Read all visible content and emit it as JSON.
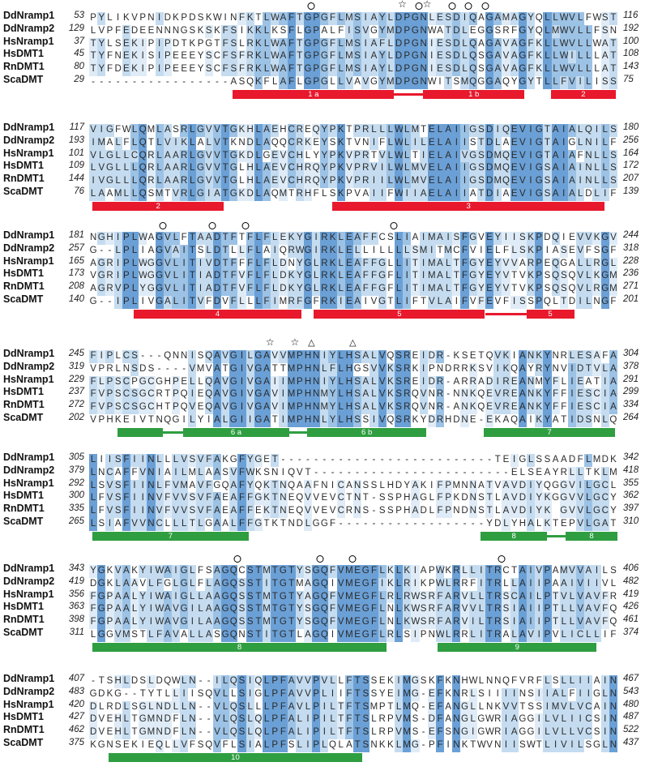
{
  "figure": {
    "type": "multiple-sequence-alignment",
    "description": "Protein sequence alignment of Nramp/DMT family transporters with conservation shading, secondary-structure bars and residue markers"
  },
  "colors": {
    "shade_dark": "#6ba0d6",
    "shade_medium": "#9cc2e5",
    "shade_light": "#c5dcf0",
    "shade_pale": "#dfecf7",
    "helix_red": "#e8192c",
    "helix_green": "#2f9e41",
    "bar_label": "#ffffff",
    "text": "#2a2a2a"
  },
  "row_names": [
    "DdNramp1",
    "DdNramp2",
    "HsNramp1",
    "HsDMT1",
    "RnDMT1",
    "ScaDMT"
  ],
  "marker_symbols": {
    "circle": "open-circle-icon",
    "star": "open-star-icon",
    "triangle": "open-triangle-icon"
  },
  "blocks": [
    {
      "starts": [
        53,
        129,
        37,
        45,
        80,
        29
      ],
      "ends": [
        116,
        192,
        100,
        108,
        143,
        75
      ],
      "seqs": [
        "PYLIKVPNIDKPDSKWINFKTLWAFTGPGFLMSIAYLDPGNLESDIQAGAMAGYQLLWVLFWST",
        "LVPFEDEENNNGSKSKFSIKKLKSFLGPALFISVGYMDPGNWATDLEGGSRFGYQLMWVLLFSN",
        "TYLSEKIPIPDTKPGTFSLRKLWAFTGPGFLMSIAFLDPGNIESDLQAGAVAGFKLLWVLLWAT",
        "TYFNEKISIPEEEYSCFSFRKLWAFTGPGFLMSIAYLDPGNIESDLQSGAVAGFKLLWILLLAT",
        "TYFDEKIPIPEEEYSCFSFRKLWAFTGPGFLMSIAYLDPGNIESDLQSGAVAGFKLLWVLLLAT",
        "-----------------ASQKFLAFLGPGLLVAVGYMDPGNWITSMQGGAQYGYTLLFVILISS"
      ],
      "markers": [
        [
          26,
          "circle"
        ],
        [
          37,
          "star"
        ],
        [
          39,
          "circle"
        ],
        [
          40,
          "star"
        ],
        [
          43,
          "circle"
        ],
        [
          45,
          "circle"
        ],
        [
          47,
          "circle"
        ]
      ],
      "bars": [
        [
          17,
          36.5,
          "red",
          "1 a",
          false
        ],
        [
          36.5,
          40,
          "red",
          "",
          true
        ],
        [
          40,
          52.3,
          "red",
          "1 b",
          false
        ],
        [
          55.5,
          63.3,
          "red",
          "2",
          false
        ]
      ]
    },
    {
      "starts": [
        117,
        193,
        101,
        109,
        144,
        76
      ],
      "ends": [
        180,
        256,
        164,
        172,
        207,
        139
      ],
      "seqs": [
        "VIGFWLQMLASRLGVVTGKHLAEHCREQYPKTPRLLLWLMTELAIIGSDIQEVIGTAIALQILS",
        "IMALFLQTLVIKLALVTKNDLAQQCRKEYSKTVNIFLWLILELAIISTDLAEVIGTAIGLNILF",
        "VLGLLCQRLAARLGVVTGKDLGEVCHLYYPKVPRTVLWLTIELAIVGSDMQEVIGTAIAFNLLS",
        "LVGLLLQRLAARLGVVTGLHLAEVCHRQYPKVPRVILWLMVELAIIGSDMQEVIGSAIAINLLS",
        "IVGLLLQRLAARLGVVTGLHLAEVCHRQYPKVPRIILWLMVELAIIGSDMQEVIGSAIAINLLS",
        "LAAMLLQSMTVRLGIATGKDLAQMTRHFLSKPVAIIFWIIAELAIIATDIAEVIGSAIALDLIF"
      ],
      "markers": [],
      "bars": [
        [
          0,
          15.9,
          "red",
          "2",
          false
        ],
        [
          29,
          62,
          "red",
          "3",
          false
        ]
      ]
    },
    {
      "starts": [
        181,
        257,
        165,
        173,
        208,
        140
      ],
      "ends": [
        244,
        318,
        228,
        236,
        271,
        201
      ],
      "seqs": [
        "NGHIPLWAGVLFTAADTFTFLFLEKYGIRKLEAFFCSLIAIMAISFGVEYIISKPDQIEVVKGV",
        "G--LPLIAGVAITSLDTLLFLAIQRWGIRKLELLILLLLSMITMCFVIELFLSKPIASEVFSGF",
        "AGRIPLWGGVLITIVDTFFFLFLDNYGLRKLEAFFGLLITIMALTFGYEYVVARPEQGALLRGL",
        "VGRIPLWGGVLITIADTFVFLFLDKYGLRKLEAFFGFLITIMALTFGYEYVTVKPSQSQVLKGM",
        "AGRVPLYGGVLITIADTFVFLFLDKYGLRKLEAFFGFLITIMALTFGYEYVTVKPSQSQVLRGM",
        "G--IPLIVGALITVFDVFLLLFIMRFGFRKIEAIVGTLIFTVLAIFVFEVFISSPQLTDILNGF"
      ],
      "markers": [
        [
          8,
          "circle"
        ],
        [
          14,
          "circle"
        ],
        [
          18,
          "circle"
        ],
        [
          36,
          "circle"
        ]
      ],
      "bars": [
        [
          5,
          25.3,
          "red",
          "4",
          false
        ],
        [
          26.8,
          47.5,
          "red",
          "5",
          false
        ],
        [
          47.5,
          52.5,
          "red",
          "",
          true
        ],
        [
          52.5,
          58.3,
          "red",
          "5",
          false
        ]
      ]
    },
    {
      "starts": [
        245,
        319,
        229,
        237,
        272,
        202
      ],
      "ends": [
        304,
        378,
        291,
        299,
        334,
        264
      ],
      "seqs": [
        "FIPLCS---QNNISQAVGILGAVVMPHNIYLHSALVQSREIDR-KSETQVKIANKYNRLESAFA",
        "VPRLNSDS----VMVATGIVGATTMPHNLFLHGSVVKSRKIPNDRRKSVIKQAYRYNVIDTVLA",
        "FLPSCPGCGHPELLQAVGIVGAIIMPHNIYLHSALVKSREIDR-ARRADIREANMYFLIEATIA",
        "FVPSCSGCRTPQIEQAVGIVGAVIMPHNMYLHSALVKSRQVNR-NNKQEVREANKYFFIESCIA",
        "FVPSCSGCHTPQVEQAVGIVGAVIMPHNMYLHSALVKSRQVNR-ANKQEVREANKYFFIESCIA",
        "VPHKEIVTNQGILYIALGIIGATIMPHNLYLHSSIVQSRKYDRHDNE-EKAQAIKYATIDSNLQ"
      ],
      "markers": [
        [
          21,
          "star"
        ],
        [
          24,
          "star"
        ],
        [
          26,
          "triangle"
        ],
        [
          31,
          "triangle"
        ]
      ],
      "bars": [
        [
          3,
          8.5,
          "green",
          "",
          false
        ],
        [
          8.5,
          11,
          "green",
          "",
          true
        ],
        [
          11,
          23.8,
          "green",
          "6 a",
          false
        ],
        [
          23.8,
          26,
          "green",
          "",
          true
        ],
        [
          26,
          40.4,
          "green",
          "6 b",
          false
        ],
        [
          47.4,
          63.2,
          "green",
          "7",
          false
        ]
      ]
    },
    {
      "starts": [
        305,
        379,
        292,
        300,
        335,
        265
      ],
      "ends": [
        342,
        418,
        355,
        362,
        397,
        310
      ],
      "seqs": [
        "LIISFIINLLLVSVFAKGFYGET--------------------------TEIGLSSAADFLMDK",
        "LNCAFFVNIAILMLAASVFWKSNIQVT------------------------ELSEAYRLLTKLM",
        "LSVSFIINLFVMAVFGQAFYQKTNQAAFNICANSSLHDYAKIFPMNNATVAVDIYQGGVILGCL",
        "LFVSFIINVFVVSVFAEAFFGKTNEQVVEVCTNT-SSPHAGLFPKDNSTLAVDIYKGGVVLGCY",
        "LFVSFIINVFVVSVFAEAFFEKTNEQVVEVCRNS-SSPHADLFPNDNSTLAVDIYK GVVLGCY",
        "LSIAFVVNCLLLTLGAALFFGTKTNDLGGF------------------YDLYHALKTEPVLGAT"
      ],
      "markers": [],
      "bars": [
        [
          0,
          18.9,
          "green",
          "7",
          false
        ],
        [
          47,
          55,
          "green",
          "8",
          false
        ],
        [
          55,
          57.3,
          "green",
          "",
          true
        ],
        [
          57.3,
          63.5,
          "green",
          "8",
          false
        ]
      ]
    },
    {
      "starts": [
        343,
        419,
        356,
        363,
        398,
        311
      ],
      "ends": [
        406,
        482,
        419,
        426,
        461,
        374
      ],
      "seqs": [
        "YGKVAKYIWAIGLFSAGQCSTMTGTYSGQFVMEGFLKLKIAPWKRLLITRCTAIVPAMVVAILS",
        "DGKLAAVLFGLGLFLAGQSSTITGTMAGQIVMEGFIKLRIKPWLRRFITRLLAIIPAAIVIIVL",
        "FGPAALYIWAIGLLAAGQSSTMTGTYAGQFVMEGFLRLRWSRFARVLLTRSCAILPTVLVAVFR",
        "FGPAALYIWAVGILAAGQSSTMTGTYSGQFVMEGFLNLKWSRFARVVLTRSIAIIPTLLVAVFQ",
        "FGPAALYIWAVGILAAGQSSTMTGTYSGQFVMEGFLNLKWSRFARVILTRSIAIIPTLLVAVFQ",
        "LGGVMSTLFAVALLASGQNSTITGTLAGQIVMEGFLRLSIPNWLRRLITRALAVIPVLICLLIF"
      ],
      "markers": [
        [
          17,
          "circle"
        ],
        [
          27,
          "circle"
        ],
        [
          31,
          "circle"
        ],
        [
          49,
          "circle"
        ]
      ],
      "bars": [
        [
          0,
          35.6,
          "green",
          "8",
          false
        ],
        [
          41.8,
          61,
          "green",
          "9",
          false
        ]
      ]
    },
    {
      "starts": [
        407,
        483,
        420,
        427,
        462,
        375
      ],
      "ends": [
        467,
        543,
        480,
        487,
        522,
        437
      ],
      "seqs": [
        "-TSHLDSLDQWLN--ILQSIQLPFAVVPVLLFTSSEKIMGSKFKNHWLNNQFVRFLSLLIIAIN",
        "GDKG--TYTLLIISQVLLSIGLPFAVVPLIIFTSSYEIMG-EFKNRLSIIIINSIIALFIIGLN",
        "DLRDLSGLNDLLN--VLQSLLLPFAVLPILTFTSMPTLMQ-EFANGLLNKVVTSSIMVLVCAIN",
        "DVEHLTGMNDFLN--VLQSLQLPFALIPILTFTSLRPVMS-DFANGLGWRIAGGILVLIICSIN",
        "DVEHLTGMNDFLN--VLQSLQLPFALIPILTFTSLRPVMS-EFSNGIGWRIAGGILVLLVCSIN",
        "KGNSEKIEQLLVFSQVFLSIALPFSLIPLQLATSNKKLMG-PFINKTWVNIISWTLIVILSGLN"
      ],
      "markers": [],
      "bars": [
        [
          2,
          32.6,
          "green",
          "10",
          false
        ]
      ]
    }
  ]
}
